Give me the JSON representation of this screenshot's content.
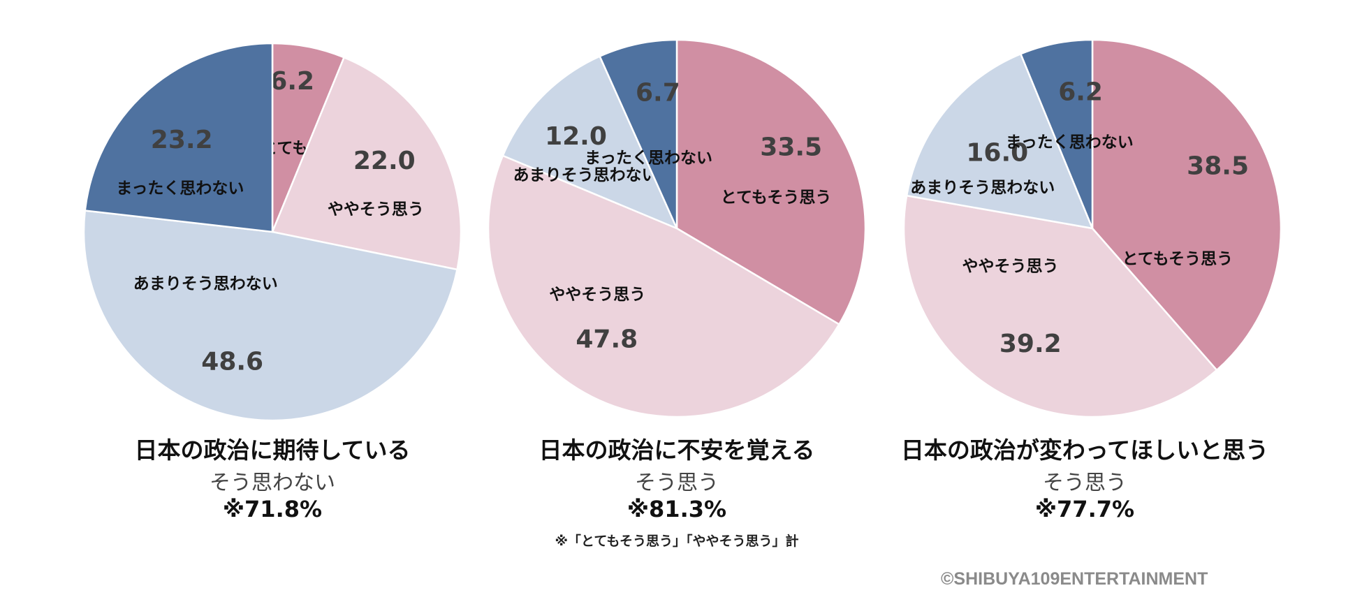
{
  "chart_data": [
    {
      "type": "pie",
      "title": "日本の政治に期待している",
      "categories": [
        "とてもそう思う",
        "ややそう思う",
        "あまりそう思わない",
        "まったく思わない"
      ],
      "values": [
        6.2,
        22.0,
        48.6,
        23.2
      ],
      "value_labels": [
        "6.2",
        "22.0",
        "48.6",
        "23.2"
      ],
      "colors": [
        "#d08fa3",
        "#ecd3dc",
        "#cbd7e7",
        "#4f72a0"
      ],
      "summary_label": "そう思わない",
      "summary_value": "※71.8%"
    },
    {
      "type": "pie",
      "title": "日本の政治に不安を覚える",
      "categories": [
        "とてもそう思う",
        "ややそう思う",
        "あまりそう思わない",
        "まったく思わない"
      ],
      "values": [
        33.5,
        47.8,
        12.0,
        6.7
      ],
      "value_labels": [
        "33.5",
        "47.8",
        "12.0",
        "6.7"
      ],
      "colors": [
        "#d08fa3",
        "#ecd3dc",
        "#cbd7e7",
        "#4f72a0"
      ],
      "summary_label": "そう思う",
      "summary_value": "※81.3%"
    },
    {
      "type": "pie",
      "title": "日本の政治が変わってほしいと思う",
      "categories": [
        "とてもそう思う",
        "ややそう思う",
        "あまりそう思わない",
        "まったく思わない"
      ],
      "values": [
        38.5,
        39.2,
        16.0,
        6.2
      ],
      "value_labels": [
        "38.5",
        "39.2",
        "16.0",
        "6.2"
      ],
      "colors": [
        "#d08fa3",
        "#ecd3dc",
        "#cbd7e7",
        "#4f72a0"
      ],
      "summary_label": "そう思う",
      "summary_value": "※77.7%"
    }
  ],
  "footnote": "※「とてもそう思う」「ややそう思う」計",
  "copyright": "©SHIBUYA109ENTERTAINMENT"
}
